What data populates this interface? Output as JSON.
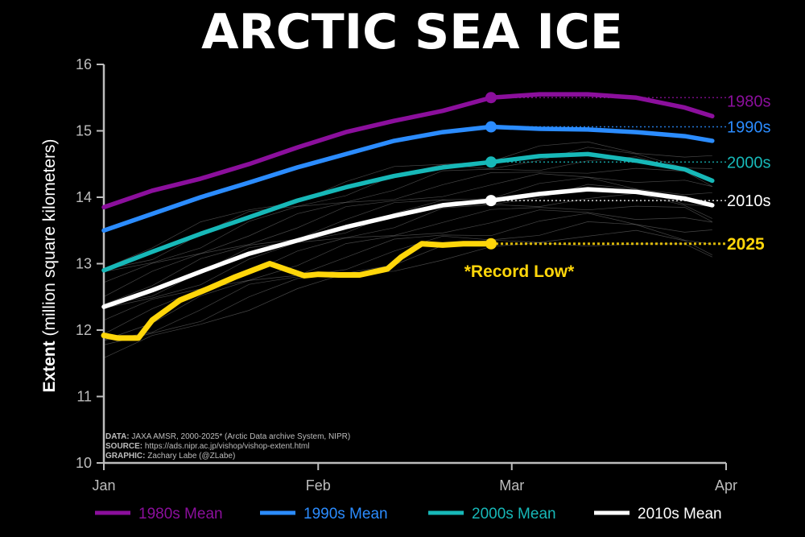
{
  "title": "ARCTIC SEA ICE",
  "colors": {
    "1980s": "#8b0f9c",
    "1990s": "#2b8cff",
    "2000s": "#17b8b8",
    "2010s": "#ffffff",
    "2025": "#ffd60a",
    "background": "#000000",
    "axis": "#bdbdbd",
    "thin_years": "#9a9a9a"
  },
  "annotation": "*Record Low*",
  "credits": [
    {
      "key": "DATA:",
      "text": " JAXA AMSR, 2000-2025* (Arctic Data archive System, NIPR)"
    },
    {
      "key": "SOURCE:",
      "text": " https://ads.nipr.ac.jp/vishop/vishop-extent.html"
    },
    {
      "key": "GRAPHIC:",
      "text": " Zachary Labe (@ZLabe)"
    }
  ],
  "legend": [
    {
      "label": "1980s Mean",
      "color": "#8b0f9c"
    },
    {
      "label": "1990s Mean",
      "color": "#2b8cff"
    },
    {
      "label": "2000s Mean",
      "color": "#17b8b8"
    },
    {
      "label": "2010s Mean",
      "color": "#ffffff"
    }
  ],
  "chart_data": {
    "type": "line",
    "title": "ARCTIC SEA ICE",
    "ylabel_bold": "Extent",
    "ylabel_rest": " (million square kilometers)",
    "xlabel": "",
    "ylim": [
      10,
      16
    ],
    "xlim": [
      "Jan",
      "Apr"
    ],
    "x_ticks": [
      "Jan",
      "Feb",
      "Mar",
      "Apr"
    ],
    "y_ticks": [
      10,
      11,
      12,
      13,
      14,
      15,
      16
    ],
    "x_unit": "day of year",
    "grid": false,
    "legend_position": "bottom",
    "series": [
      {
        "name": "1980s",
        "label": "1980s Mean",
        "end_label": "1980s",
        "color": "#8b0f9c",
        "x": [
          1,
          8,
          15,
          22,
          29,
          36,
          43,
          50,
          57,
          64,
          71,
          78,
          85,
          89
        ],
        "y": [
          13.85,
          14.1,
          14.28,
          14.5,
          14.75,
          14.98,
          15.15,
          15.3,
          15.5,
          15.55,
          15.55,
          15.5,
          15.35,
          15.22
        ]
      },
      {
        "name": "1990s",
        "label": "1990s Mean",
        "end_label": "1990s",
        "color": "#2b8cff",
        "x": [
          1,
          8,
          15,
          22,
          29,
          36,
          43,
          50,
          57,
          64,
          71,
          78,
          85,
          89
        ],
        "y": [
          13.5,
          13.75,
          14.0,
          14.22,
          14.45,
          14.65,
          14.85,
          14.98,
          15.06,
          15.03,
          15.02,
          14.98,
          14.92,
          14.85
        ]
      },
      {
        "name": "2000s",
        "label": "2000s Mean",
        "end_label": "2000s",
        "color": "#17b8b8",
        "x": [
          1,
          8,
          15,
          22,
          29,
          36,
          43,
          50,
          57,
          64,
          71,
          78,
          85,
          89
        ],
        "y": [
          12.9,
          13.18,
          13.45,
          13.7,
          13.95,
          14.15,
          14.32,
          14.45,
          14.53,
          14.62,
          14.65,
          14.55,
          14.42,
          14.25
        ]
      },
      {
        "name": "2010s",
        "label": "2010s Mean",
        "end_label": "2010s",
        "color": "#ffffff",
        "x": [
          1,
          8,
          15,
          22,
          29,
          36,
          43,
          50,
          57,
          64,
          71,
          78,
          85,
          89
        ],
        "y": [
          12.35,
          12.6,
          12.88,
          13.15,
          13.35,
          13.55,
          13.72,
          13.88,
          13.95,
          14.05,
          14.12,
          14.08,
          13.98,
          13.88
        ]
      },
      {
        "name": "2025",
        "label": "2025",
        "end_label": "2025",
        "color": "#ffd60a",
        "x": [
          1,
          3,
          6,
          8,
          12,
          16,
          20,
          25,
          30,
          32,
          35,
          38,
          42,
          44,
          47,
          50,
          53,
          57
        ],
        "y": [
          11.92,
          11.88,
          11.88,
          12.15,
          12.45,
          12.62,
          12.8,
          13.0,
          12.82,
          12.84,
          12.83,
          12.83,
          12.92,
          13.1,
          13.3,
          13.28,
          13.3,
          13.3
        ]
      }
    ],
    "markers": [
      {
        "series": "1980s",
        "x": 57,
        "y": 15.5
      },
      {
        "series": "1990s",
        "x": 57,
        "y": 15.06
      },
      {
        "series": "2000s",
        "x": 57,
        "y": 14.53
      },
      {
        "series": "2010s",
        "x": 57,
        "y": 13.95
      },
      {
        "series": "2025",
        "x": 57,
        "y": 13.3
      }
    ]
  }
}
